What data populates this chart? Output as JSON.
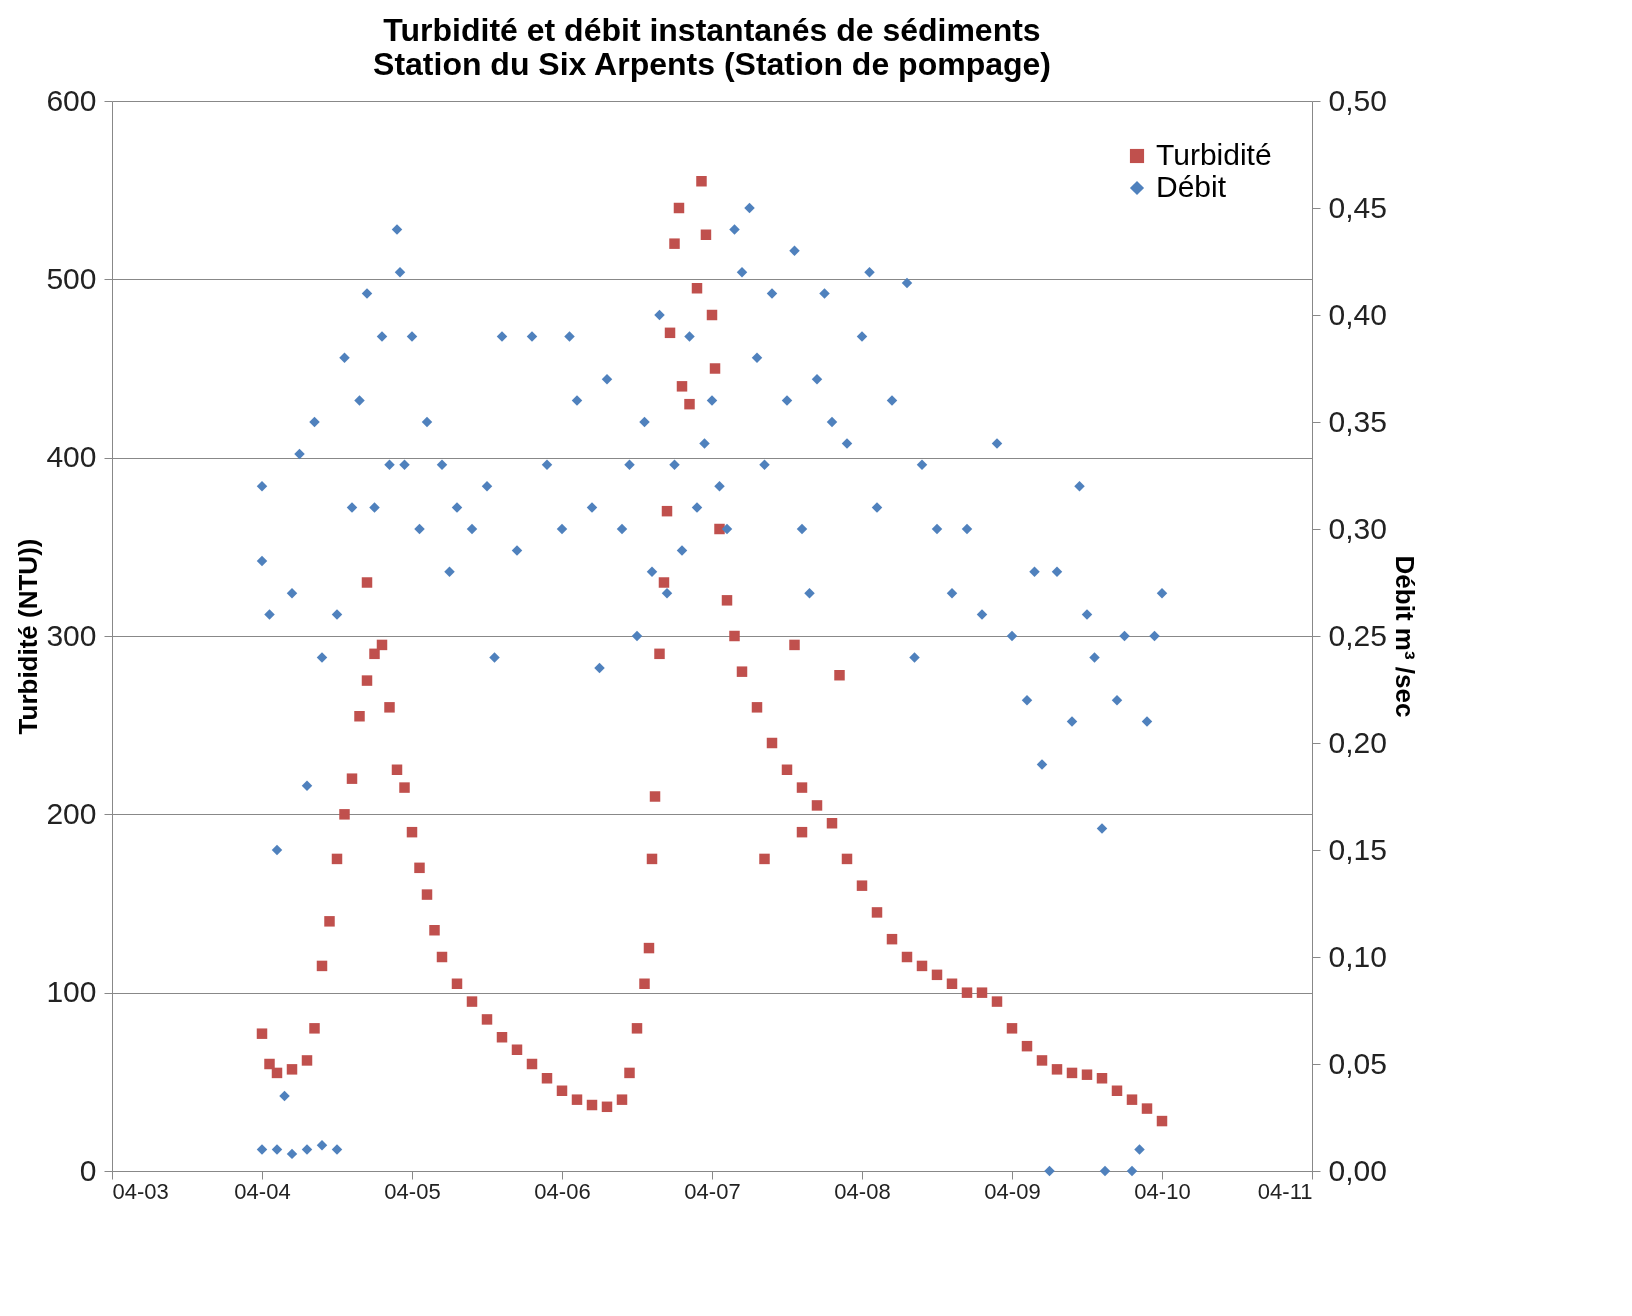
{
  "chart_data": {
    "type": "scatter",
    "title": "Turbidité et débit instantanés de sédiments\nStation du Six Arpents (Station de pompage)",
    "ylabel": "Turbidité (NTU))",
    "y2label": "Débit m³ /sec",
    "xlim": [
      "--04-03",
      "--04-11"
    ],
    "xticks": [
      {
        "value": "--04-03",
        "label": "04-03"
      },
      {
        "value": "--04-04",
        "label": "04-04"
      },
      {
        "value": "--04-05",
        "label": "04-05"
      },
      {
        "value": "--04-06",
        "label": "04-06"
      },
      {
        "value": "--04-07",
        "label": "04-07"
      },
      {
        "value": "--04-08",
        "label": "04-08"
      },
      {
        "value": "--04-09",
        "label": "04-09"
      },
      {
        "value": "--04-10",
        "label": "04-10"
      },
      {
        "value": "--04-11",
        "label": "04-11"
      }
    ],
    "ylim": [
      0,
      600
    ],
    "yticks": [
      0,
      100,
      200,
      300,
      400,
      500,
      600
    ],
    "y2lim": [
      0,
      0.5
    ],
    "y2ticks": [
      {
        "value": 0,
        "label": "0,00"
      },
      {
        "value": 0.05,
        "label": "0,05"
      },
      {
        "value": 0.1,
        "label": "0,10"
      },
      {
        "value": 0.15,
        "label": "0,15"
      },
      {
        "value": 0.2,
        "label": "0,20"
      },
      {
        "value": 0.25,
        "label": "0,25"
      },
      {
        "value": 0.3,
        "label": "0,30"
      },
      {
        "value": 0.35,
        "label": "0,35"
      },
      {
        "value": 0.4,
        "label": "0,40"
      },
      {
        "value": 0.45,
        "label": "0,45"
      },
      {
        "value": 0.5,
        "label": "0,50"
      }
    ],
    "grid": "y",
    "legend": "top right",
    "series": [
      {
        "name": "Turbidité",
        "color": "#c0504d",
        "marker": "square",
        "x": [
          "--04-04T00:00",
          "--04-04T01:12",
          "--04-04T02:24",
          "--04-04T04:48",
          "--04-04T07:12",
          "--04-04T08:24",
          "--04-04T09:36",
          "--04-04T10:48",
          "--04-04T12:00",
          "--04-04T13:12",
          "--04-04T14:24",
          "--04-04T15:36",
          "--04-04T16:48",
          "--04-04T16:48",
          "--04-04T18:00",
          "--04-04T19:12",
          "--04-04T20:24",
          "--04-04T21:36",
          "--04-04T22:48",
          "--04-05T00:00",
          "--04-05T01:12",
          "--04-05T02:24",
          "--04-05T03:36",
          "--04-05T04:48",
          "--04-05T07:12",
          "--04-05T09:36",
          "--04-05T12:00",
          "--04-05T14:24",
          "--04-05T16:48",
          "--04-05T19:12",
          "--04-05T21:36",
          "--04-06T00:00",
          "--04-06T02:24",
          "--04-06T04:48",
          "--04-06T07:12",
          "--04-06T09:36",
          "--04-06T10:48",
          "--04-06T12:00",
          "--04-06T13:12",
          "--04-06T13:55",
          "--04-06T14:24",
          "--04-06T14:53",
          "--04-06T15:36",
          "--04-06T16:19",
          "--04-06T16:48",
          "--04-06T17:17",
          "--04-06T18:00",
          "--04-06T18:43",
          "--04-06T19:12",
          "--04-06T20:24",
          "--04-06T21:36",
          "--04-06T22:19",
          "--04-06T23:02",
          "--04-07T00:00",
          "--04-07T00:29",
          "--04-07T01:12",
          "--04-07T02:24",
          "--04-07T03:36",
          "--04-07T04:48",
          "--04-07T07:12",
          "--04-07T08:24",
          "--04-07T09:36",
          "--04-07T12:00",
          "--04-07T13:12",
          "--04-07T14:24",
          "--04-07T14:24",
          "--04-07T16:48",
          "--04-07T19:12",
          "--04-07T20:24",
          "--04-07T21:36",
          "--04-08T00:00",
          "--04-08T02:24",
          "--04-08T04:48",
          "--04-08T07:12",
          "--04-08T09:36",
          "--04-08T12:00",
          "--04-08T14:24",
          "--04-08T16:48",
          "--04-08T19:12",
          "--04-08T21:36",
          "--04-09T00:00",
          "--04-09T02:24",
          "--04-09T04:48",
          "--04-09T07:12",
          "--04-09T09:36",
          "--04-09T12:00",
          "--04-09T14:24",
          "--04-09T16:48",
          "--04-09T19:12",
          "--04-09T21:36",
          "--04-10T00:00"
        ],
        "values": [
          77,
          60,
          55,
          57,
          62,
          80,
          115,
          140,
          175,
          200,
          220,
          255,
          275,
          330,
          290,
          295,
          260,
          225,
          215,
          190,
          170,
          155,
          135,
          120,
          105,
          95,
          85,
          75,
          68,
          60,
          52,
          45,
          40,
          37,
          36,
          40,
          55,
          80,
          105,
          125,
          175,
          210,
          290,
          330,
          370,
          470,
          520,
          540,
          440,
          430,
          495,
          555,
          525,
          480,
          450,
          360,
          320,
          300,
          280,
          260,
          175,
          240,
          225,
          295,
          215,
          190,
          205,
          195,
          278,
          175,
          160,
          145,
          130,
          120,
          115,
          110,
          105,
          100,
          100,
          95,
          80,
          70,
          62,
          57,
          55,
          54,
          52,
          45,
          40,
          35,
          28
        ]
      },
      {
        "name": "Débit",
        "color": "#4f81bd",
        "marker": "diamond",
        "axis": "y2",
        "x": [
          "--04-04T00:00",
          "--04-04T00:00",
          "--04-04T00:00",
          "--04-04T01:12",
          "--04-04T02:24",
          "--04-04T02:24",
          "--04-04T03:36",
          "--04-04T04:48",
          "--04-04T04:48",
          "--04-04T06:00",
          "--04-04T07:12",
          "--04-04T07:12",
          "--04-04T08:24",
          "--04-04T09:36",
          "--04-04T09:36",
          "--04-04T12:00",
          "--04-04T12:00",
          "--04-04T13:12",
          "--04-04T14:24",
          "--04-04T15:36",
          "--04-04T16:48",
          "--04-04T18:00",
          "--04-04T19:12",
          "--04-04T20:24",
          "--04-04T21:36",
          "--04-04T22:05",
          "--04-04T22:48",
          "--04-05T00:00",
          "--04-05T01:12",
          "--04-05T02:24",
          "--04-05T04:48",
          "--04-05T06:00",
          "--04-05T07:12",
          "--04-05T09:36",
          "--04-05T12:00",
          "--04-05T13:12",
          "--04-05T14:24",
          "--04-05T16:48",
          "--04-05T19:12",
          "--04-05T21:36",
          "--04-06T00:00",
          "--04-06T01:12",
          "--04-06T02:24",
          "--04-06T04:48",
          "--04-06T06:00",
          "--04-06T07:12",
          "--04-06T09:36",
          "--04-06T10:48",
          "--04-06T12:00",
          "--04-06T13:12",
          "--04-06T14:24",
          "--04-06T15:36",
          "--04-06T16:48",
          "--04-06T18:00",
          "--04-06T19:12",
          "--04-06T20:24",
          "--04-06T21:36",
          "--04-06T22:48",
          "--04-07T00:00",
          "--04-07T01:12",
          "--04-07T02:24",
          "--04-07T03:36",
          "--04-07T04:48",
          "--04-07T06:00",
          "--04-07T07:12",
          "--04-07T08:24",
          "--04-07T09:36",
          "--04-07T12:00",
          "--04-07T13:12",
          "--04-07T14:24",
          "--04-07T15:36",
          "--04-07T16:48",
          "--04-07T18:00",
          "--04-07T19:12",
          "--04-07T21:36",
          "--04-08T00:00",
          "--04-08T01:12",
          "--04-08T02:24",
          "--04-08T04:48",
          "--04-08T07:12",
          "--04-08T08:24",
          "--04-08T09:36",
          "--04-08T12:00",
          "--04-08T14:24",
          "--04-08T16:48",
          "--04-08T19:12",
          "--04-08T21:36",
          "--04-09T00:00",
          "--04-09T02:24",
          "--04-09T03:36",
          "--04-09T04:48",
          "--04-09T06:00",
          "--04-09T07:12",
          "--04-09T09:36",
          "--04-09T10:48",
          "--04-09T12:00",
          "--04-09T13:12",
          "--04-09T14:24",
          "--04-09T14:53",
          "--04-09T16:48",
          "--04-09T18:00",
          "--04-09T19:12",
          "--04-09T20:24",
          "--04-09T21:36",
          "--04-09T22:48",
          "--04-10T00:00"
        ],
        "values": [
          0.32,
          0.285,
          0.01,
          0.26,
          0.15,
          0.01,
          0.035,
          0.27,
          0.008,
          0.335,
          0.18,
          0.01,
          0.35,
          0.24,
          0.012,
          0.26,
          0.01,
          0.38,
          0.31,
          0.36,
          0.41,
          0.31,
          0.39,
          0.33,
          0.44,
          0.42,
          0.33,
          0.39,
          0.3,
          0.35,
          0.33,
          0.28,
          0.31,
          0.3,
          0.32,
          0.24,
          0.39,
          0.29,
          0.39,
          0.33,
          0.3,
          0.39,
          0.36,
          0.31,
          0.235,
          0.37,
          0.3,
          0.33,
          0.25,
          0.35,
          0.28,
          0.4,
          0.27,
          0.33,
          0.29,
          0.39,
          0.31,
          0.34,
          0.36,
          0.32,
          0.3,
          0.44,
          0.42,
          0.45,
          0.38,
          0.33,
          0.41,
          0.36,
          0.43,
          0.3,
          0.27,
          0.37,
          0.41,
          0.35,
          0.34,
          0.39,
          0.42,
          0.31,
          0.36,
          0.415,
          0.24,
          0.33,
          0.3,
          0.27,
          0.3,
          0.26,
          0.34,
          0.25,
          0.22,
          0.28,
          0.19,
          0.0,
          0.28,
          0.21,
          0.32,
          0.26,
          0.24,
          0.16,
          0.0,
          0.22,
          0.25,
          0.0,
          0.01,
          0.21,
          0.25,
          0.27
        ]
      }
    ]
  }
}
